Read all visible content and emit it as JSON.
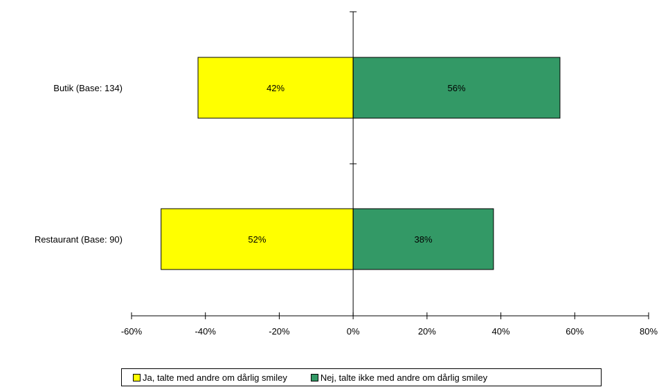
{
  "chart_data": {
    "type": "bar",
    "orientation": "horizontal",
    "stacked": "diverging",
    "categories": [
      "Butik (Base: 134)",
      "Restaurant (Base: 90)"
    ],
    "series": [
      {
        "name": "Ja, talte med andre om dårlig smiley",
        "color": "#FFFF00",
        "values": [
          -42,
          -52
        ],
        "labels": [
          "42%",
          "52%"
        ]
      },
      {
        "name": "Nej, talte ikke med andre om dårlig smiley",
        "color": "#339966",
        "values": [
          56,
          38
        ],
        "labels": [
          "56%",
          "38%"
        ]
      }
    ],
    "xlim": [
      -60,
      80
    ],
    "xticks": [
      -60,
      -40,
      -20,
      0,
      20,
      40,
      60,
      80
    ],
    "xtick_labels": [
      "-60%",
      "-40%",
      "-20%",
      "0%",
      "20%",
      "40%",
      "60%",
      "80%"
    ],
    "grid": false,
    "legend_position": "bottom"
  }
}
